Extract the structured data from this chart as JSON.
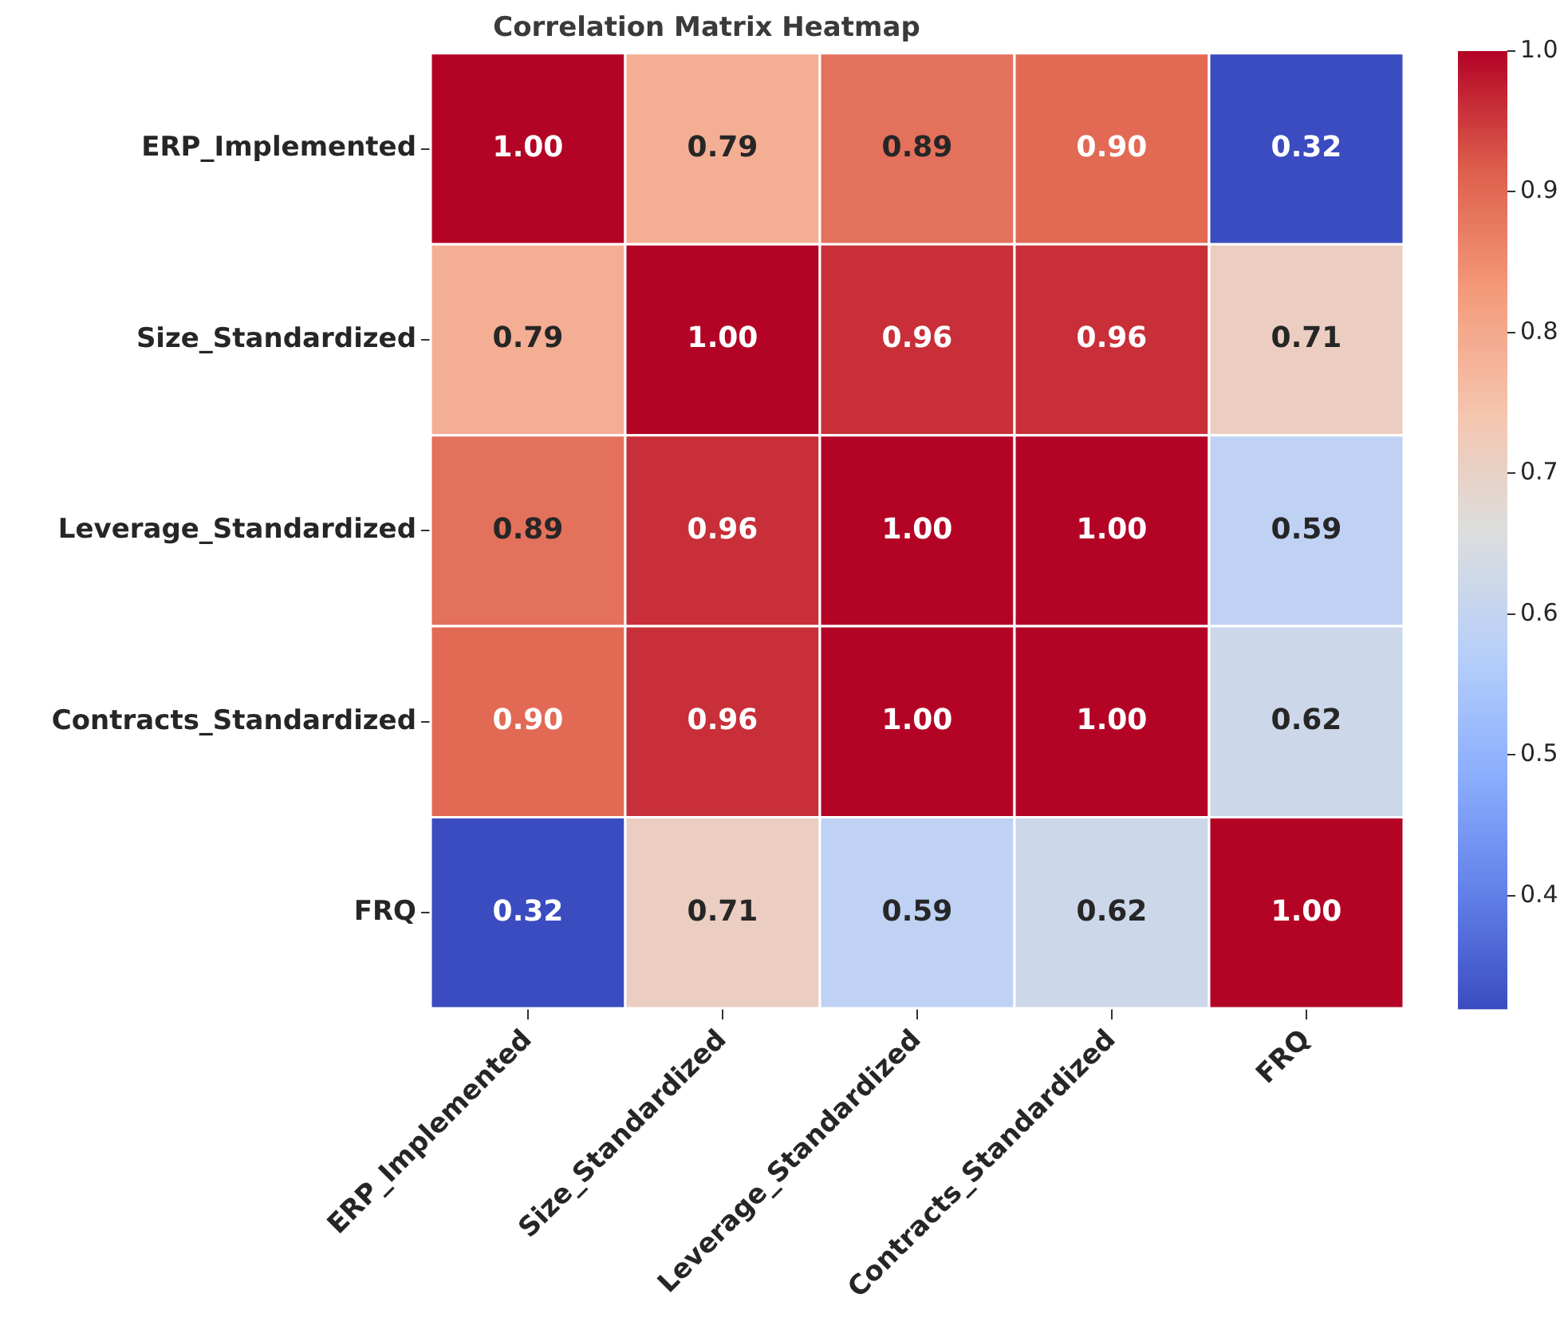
{
  "chart_data": {
    "type": "heatmap",
    "title": "Correlation Matrix Heatmap",
    "categories": [
      "ERP_Implemented",
      "Size_Standardized",
      "Leverage_Standardized",
      "Contracts_Standardized",
      "FRQ"
    ],
    "y_categories": [
      "ERP_Implemented",
      "Size_Standardized",
      "Leverage_Standardized",
      "Contracts_Standardized",
      "FRQ"
    ],
    "cells": [
      [
        1.0,
        0.79,
        0.89,
        0.9,
        0.32
      ],
      [
        0.79,
        1.0,
        0.96,
        0.96,
        0.71
      ],
      [
        0.89,
        0.96,
        1.0,
        1.0,
        0.59
      ],
      [
        0.9,
        0.96,
        1.0,
        1.0,
        0.62
      ],
      [
        0.32,
        0.71,
        0.59,
        0.62,
        1.0
      ]
    ],
    "cell_labels": [
      [
        "1.00",
        "0.79",
        "0.89",
        "0.90",
        "0.32"
      ],
      [
        "0.79",
        "1.00",
        "0.96",
        "0.96",
        "0.71"
      ],
      [
        "0.89",
        "0.96",
        "1.00",
        "1.00",
        "0.59"
      ],
      [
        "0.90",
        "0.96",
        "1.00",
        "1.00",
        "0.62"
      ],
      [
        "0.32",
        "0.71",
        "0.59",
        "0.62",
        "1.00"
      ]
    ],
    "data_labels": true,
    "clim": [
      0.32,
      1.0
    ],
    "cticks": [
      0.4,
      0.5,
      0.6,
      0.7,
      0.8,
      0.9,
      {
        "value": 1.0,
        "label": "1.0"
      }
    ]
  }
}
